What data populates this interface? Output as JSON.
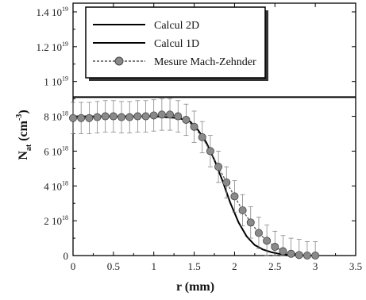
{
  "chart_data": {
    "type": "line",
    "xlabel": "r (mm)",
    "ylabel_main": "N",
    "ylabel_sub": "at",
    "ylabel_unit": " (cm",
    "ylabel_unit_exp": "-3",
    "ylabel_close": ")",
    "xlim": [
      0,
      3.5
    ],
    "ylim": [
      0,
      1.45e+19
    ],
    "x_ticks": [
      {
        "value": 0,
        "label": "0"
      },
      {
        "value": 0.5,
        "label": "0.5"
      },
      {
        "value": 1,
        "label": "1"
      },
      {
        "value": 1.5,
        "label": "1.5"
      },
      {
        "value": 2,
        "label": "2"
      },
      {
        "value": 2.5,
        "label": "2.5"
      },
      {
        "value": 3,
        "label": "3"
      },
      {
        "value": 3.5,
        "label": "3.5"
      }
    ],
    "y_ticks": [
      {
        "value": 0,
        "mant": "0",
        "exp": ""
      },
      {
        "value": 2e+18,
        "mant": "2 10",
        "exp": "18"
      },
      {
        "value": 4e+18,
        "mant": "4 10",
        "exp": "18"
      },
      {
        "value": 6e+18,
        "mant": "6 10",
        "exp": "18"
      },
      {
        "value": 8e+18,
        "mant": "8 10",
        "exp": "18"
      },
      {
        "value": 1e+19,
        "mant": "1 10",
        "exp": "19"
      },
      {
        "value": 1.2e+19,
        "mant": "1.2 10",
        "exp": "19"
      },
      {
        "value": 1.4e+19,
        "mant": "1.4 10",
        "exp": "19"
      }
    ],
    "legend_position": "top-left",
    "series": [
      {
        "name": "Calcul 2D",
        "style": "solid",
        "color": "#000000",
        "x": [
          0,
          3.5
        ],
        "y": [
          9.1e+18,
          9.1e+18
        ]
      },
      {
        "name": "Calcul 1D",
        "style": "solid",
        "color": "#000000",
        "x": [
          0,
          0.5,
          1.0,
          1.3,
          1.45,
          1.55,
          1.65,
          1.75,
          1.85,
          1.95,
          2.05,
          2.15,
          2.25,
          2.35,
          2.45,
          2.55,
          2.7,
          2.9,
          3.0
        ],
        "y": [
          8e+18,
          8e+18,
          8e+18,
          7.9e+18,
          7.7e+18,
          7.2e+18,
          6.5e+18,
          5.5e+18,
          4.3e+18,
          3e+18,
          1.9e+18,
          1.1e+18,
          6e+17,
          3.5e+17,
          2e+17,
          1e+17,
          3e+16,
          0.0,
          0.0
        ]
      },
      {
        "name": "Mesure Mach-Zehnder",
        "style": "dashed-markers",
        "color": "#555555",
        "x": [
          0.0,
          0.1,
          0.2,
          0.3,
          0.4,
          0.5,
          0.6,
          0.7,
          0.8,
          0.9,
          1.0,
          1.1,
          1.2,
          1.3,
          1.4,
          1.5,
          1.6,
          1.7,
          1.8,
          1.9,
          2.0,
          2.1,
          2.2,
          2.3,
          2.4,
          2.5,
          2.6,
          2.7,
          2.8,
          2.9,
          3.0
        ],
        "y": [
          7.9e+18,
          7.9e+18,
          7.9e+18,
          7.95e+18,
          8e+18,
          8e+18,
          7.95e+18,
          7.95e+18,
          8e+18,
          8e+18,
          8.05e+18,
          8.1e+18,
          8.1e+18,
          8e+18,
          7.8e+18,
          7.4e+18,
          6.8e+18,
          6e+18,
          5.1e+18,
          4.2e+18,
          3.4e+18,
          2.6e+18,
          1.9e+18,
          1.3e+18,
          8.5e+17,
          5e+17,
          2.5e+17,
          1e+17,
          3e+16,
          0.0,
          0.0
        ],
        "err": [
          9e+17,
          9e+17,
          9e+17,
          9e+17,
          9e+17,
          9e+17,
          9e+17,
          9e+17,
          9e+17,
          9e+17,
          9e+17,
          9e+17,
          9e+17,
          9e+17,
          9e+17,
          9e+17,
          9e+17,
          9e+17,
          9e+17,
          9e+17,
          9e+17,
          9e+17,
          9e+17,
          9e+17,
          9e+17,
          9e+17,
          9e+17,
          9e+17,
          9e+17,
          8e+17,
          8e+17
        ]
      }
    ]
  }
}
